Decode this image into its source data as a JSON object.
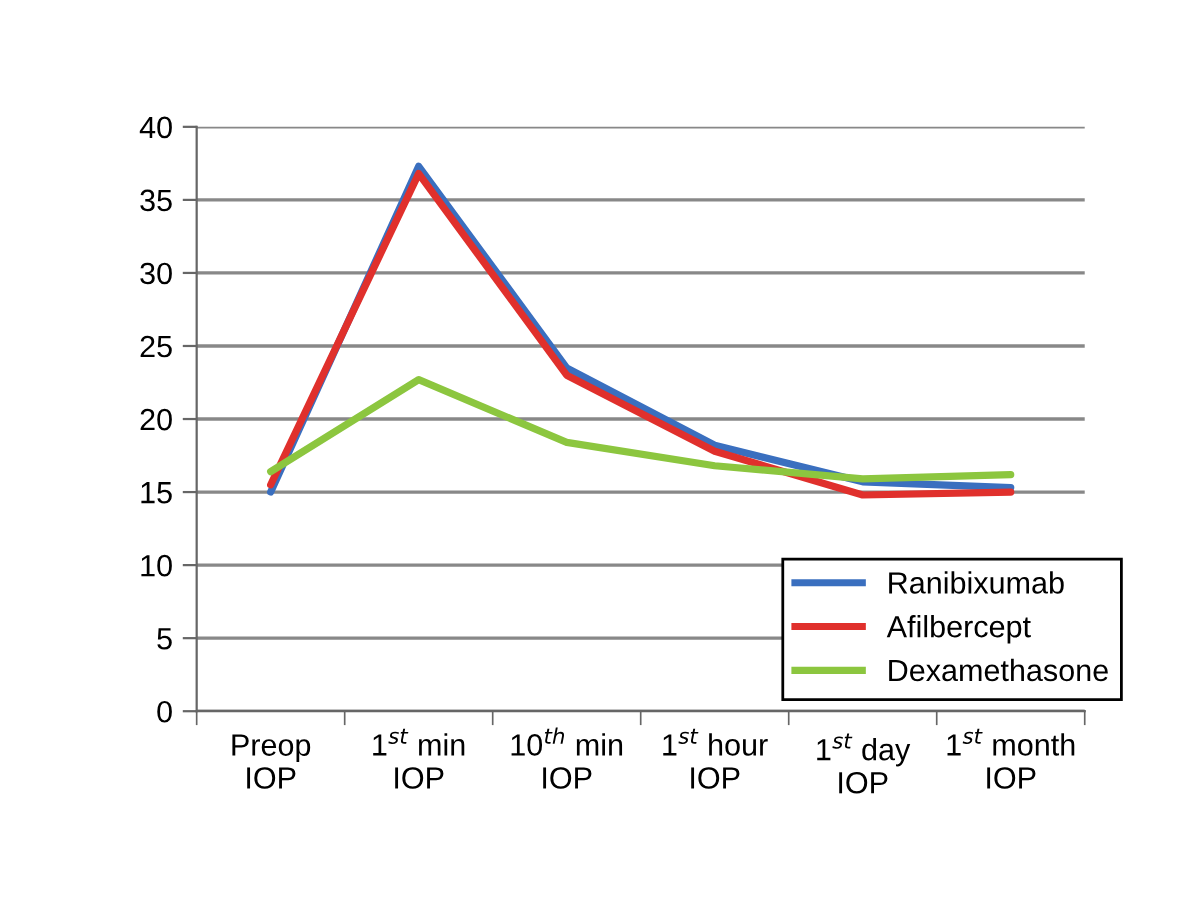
{
  "chart_data": {
    "type": "line",
    "categories": [
      "Preop\nIOP",
      "1$^{st}$ min\nIOP",
      "10$^{th}$ min\nIOP",
      "1$^{st}$ hour\nIOP",
      "1$^{st}$ day\nIOP",
      "1$^{st}$ month\nIOP"
    ],
    "series": [
      {
        "name": "Ranibixumab",
        "color": "#3a6fbf",
        "values": [
          15.0,
          37.3,
          23.5,
          18.2,
          15.7,
          15.3
        ]
      },
      {
        "name": "Afilbercept",
        "color": "#e0302c",
        "values": [
          15.5,
          36.8,
          23.0,
          17.8,
          14.8,
          15.0
        ]
      },
      {
        "name": "Dexamethasone",
        "color": "#8cc63f",
        "values": [
          16.4,
          22.7,
          18.4,
          16.8,
          15.9,
          16.2
        ]
      }
    ],
    "ylim": [
      0,
      40
    ],
    "yticks": [
      0,
      5,
      10,
      15,
      20,
      25,
      30,
      35,
      40
    ],
    "grid": "y",
    "legend": "bottom right",
    "marker": "none",
    "line_style": "solid"
  }
}
